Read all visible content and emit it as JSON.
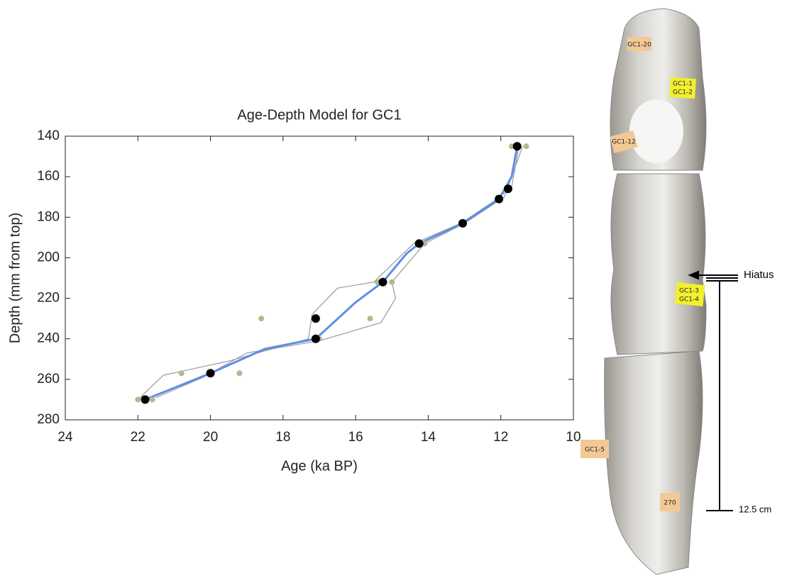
{
  "chart_data": {
    "type": "line",
    "title": "Age-Depth Model for GC1",
    "xlabel": "Age (ka BP)",
    "ylabel": "Depth (mm from top)",
    "xlim": [
      24,
      10
    ],
    "ylim": [
      280,
      140
    ],
    "xticks": [
      24,
      22,
      20,
      18,
      16,
      14,
      12,
      10
    ],
    "yticks": [
      140,
      160,
      180,
      200,
      220,
      240,
      260,
      280
    ],
    "grid": false,
    "series": [
      {
        "mode": "line",
        "color": "#9a9a9a",
        "x": [
          11.5,
          11.7,
          12.1,
          13.1,
          14.4,
          15.5,
          16.5,
          17.2,
          17.3,
          19.5,
          21.3,
          22.0
        ],
        "values": [
          145,
          165,
          171,
          183,
          193,
          212,
          215,
          228,
          240,
          251,
          258,
          270
        ]
      },
      {
        "mode": "line",
        "color": "#9a9a9a",
        "x": [
          11.4,
          11.9,
          13.0,
          14.1,
          15.0,
          14.9,
          15.3,
          17.0,
          19.0,
          20.2,
          21.5
        ],
        "values": [
          145,
          170,
          183,
          193,
          212,
          220,
          232,
          241,
          247,
          259,
          269
        ]
      },
      {
        "mode": "line",
        "color": "#5b8fe6",
        "x": [
          11.55,
          11.7,
          12.05,
          13.05,
          14.25,
          14.6,
          15.25,
          16.0,
          17.1,
          18.5,
          20.0,
          21.8
        ],
        "values": [
          145,
          160,
          171,
          183,
          193,
          198,
          212,
          222,
          240,
          245,
          257,
          270
        ]
      },
      {
        "mode": "markers",
        "color": "#b2b98c",
        "x": [
          11.7,
          11.3,
          11.85,
          12.05,
          13.05,
          14.3,
          14.1,
          15.4,
          15.0,
          15.6,
          17.0,
          18.6,
          20.8,
          19.2,
          22.0,
          21.6
        ],
        "values": [
          145,
          145,
          166,
          171,
          183,
          193,
          193,
          212,
          212,
          230,
          240,
          230,
          257,
          257,
          270,
          270
        ]
      },
      {
        "mode": "markers",
        "color": "#000000",
        "x": [
          11.55,
          11.8,
          12.05,
          13.05,
          14.25,
          15.25,
          17.1,
          17.1,
          20.0,
          21.8
        ],
        "values": [
          145,
          166,
          171,
          183,
          193,
          212,
          230,
          240,
          257,
          270
        ]
      }
    ]
  },
  "photo": {
    "hiatus": "Hiatus",
    "scale": "12.5 cm",
    "labels": [
      "GC1-20",
      "GC1-1",
      "GC1-2",
      "GC1-12",
      "GC1-3",
      "GC1-4",
      "GC1-5",
      "270"
    ]
  }
}
